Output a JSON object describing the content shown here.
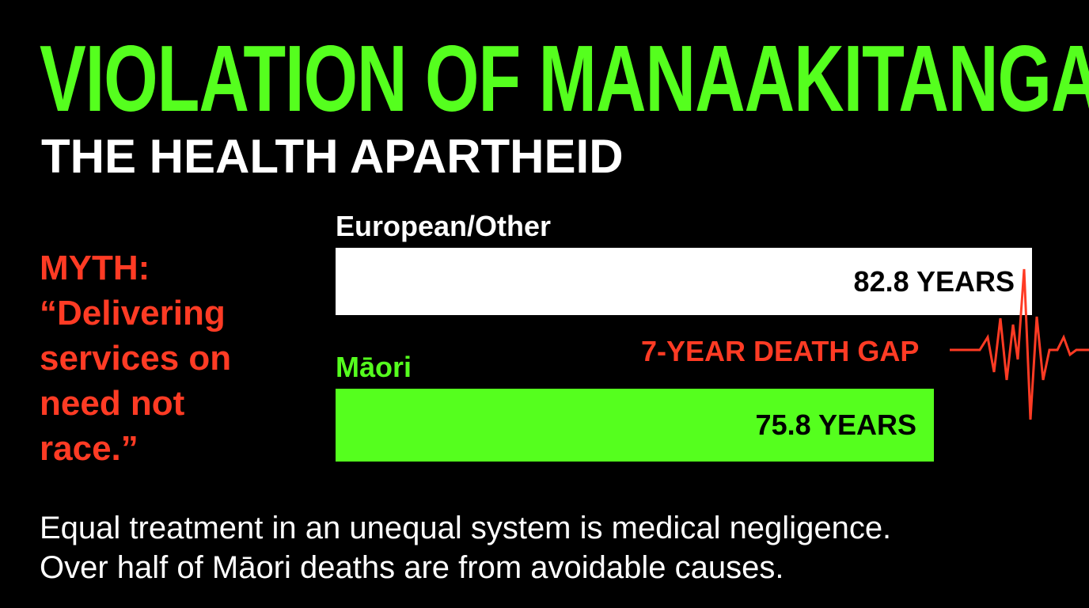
{
  "colors": {
    "background": "#000000",
    "green": "#55ff1e",
    "red": "#ff3b24",
    "white": "#ffffff"
  },
  "title": "VIOLATION OF MANAAKITANGA",
  "subtitle": "THE HEALTH APARTHEID",
  "myth": {
    "label": "MYTH:",
    "lines": [
      "“Delivering",
      "services on",
      "need not",
      "race.”"
    ]
  },
  "chart_data": {
    "type": "bar",
    "orientation": "horizontal",
    "categories": [
      "European/Other",
      "Māori"
    ],
    "values": [
      82.8,
      75.8
    ],
    "value_labels": [
      "82.8 YEARS",
      "75.8 YEARS"
    ],
    "bar_colors": [
      "#ffffff",
      "#55ff1e"
    ],
    "label_colors": [
      "#ffffff",
      "#55ff1e"
    ],
    "annotation": "7-YEAR DEATH GAP",
    "annotation_icon": "heartbeat-pulse-icon"
  },
  "footer": {
    "lines": [
      "Equal treatment in an unequal system is medical negligence.",
      "Over half of Māori deaths are from avoidable causes."
    ]
  }
}
